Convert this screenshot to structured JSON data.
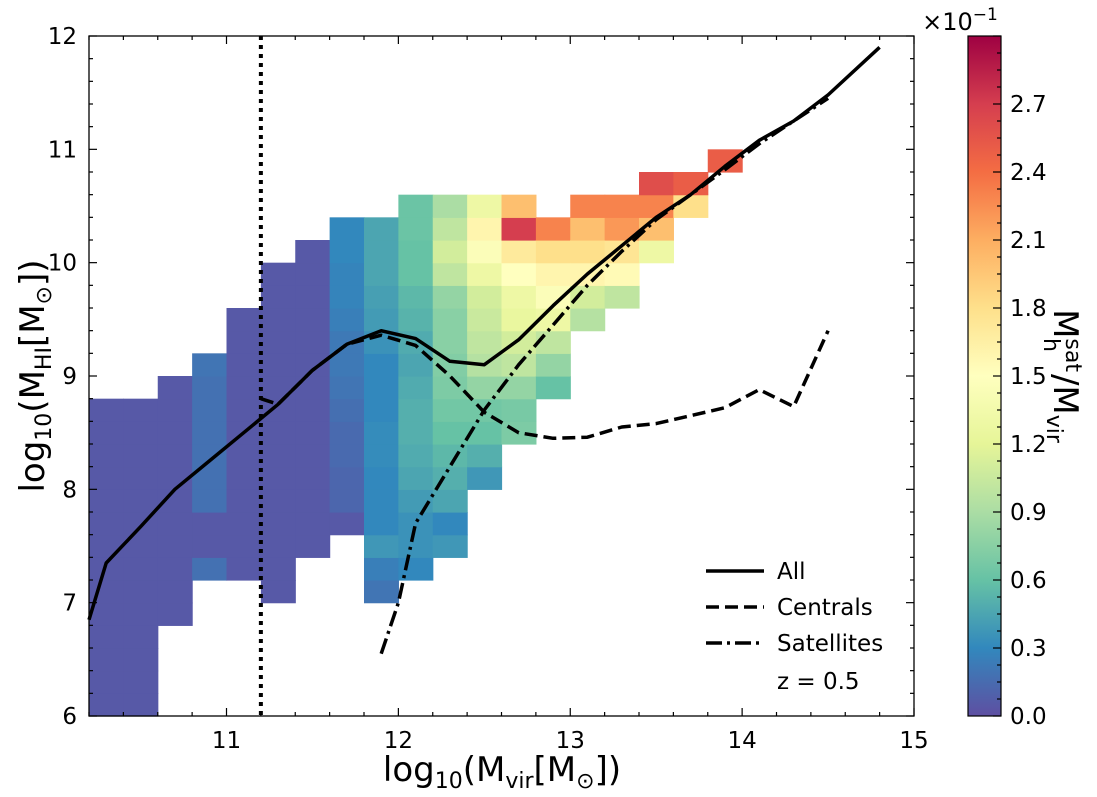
{
  "chart_data": {
    "type": "heatmap",
    "xlabel": "log10(Mvir[M⊙])",
    "ylabel": "log10(MHI[M⊙])",
    "xlim": [
      10.2,
      15.0
    ],
    "ylim": [
      6.0,
      12.0
    ],
    "xticks": [
      11,
      12,
      13,
      14,
      15
    ],
    "yticks": [
      6,
      7,
      8,
      9,
      10,
      11,
      12
    ],
    "grid": false,
    "colorbar": {
      "label": "Mh sat/Mvir",
      "multiplier": "×10−1",
      "range": [
        0.0,
        3.0
      ],
      "ticks": [
        "0.0",
        "0.3",
        "0.6",
        "0.9",
        "1.2",
        "1.5",
        "1.8",
        "2.1",
        "2.4",
        "2.7"
      ],
      "colormap": "Spectral_r",
      "colors": [
        "#5e4fa2",
        "#3288bd",
        "#66c2a5",
        "#abdda4",
        "#e6f598",
        "#ffffbf",
        "#fee08b",
        "#fdae61",
        "#f46d43",
        "#d53e4f",
        "#9e0142"
      ]
    },
    "heatmap": {
      "bin_width": 0.2,
      "bin_height": 0.2,
      "columns": [
        {
          "x": 10.3,
          "cells": [
            [
              6.1,
              0.05
            ],
            [
              6.3,
              0.05
            ],
            [
              6.5,
              0.05
            ],
            [
              6.7,
              0.05
            ],
            [
              6.9,
              0.05
            ],
            [
              7.1,
              0.05
            ],
            [
              7.3,
              0.05
            ],
            [
              7.5,
              0.05
            ],
            [
              7.7,
              0.05
            ],
            [
              7.9,
              0.05
            ],
            [
              8.1,
              0.05
            ],
            [
              8.3,
              0.05
            ],
            [
              8.5,
              0.05
            ],
            [
              8.7,
              0.05
            ]
          ]
        },
        {
          "x": 10.5,
          "cells": [
            [
              6.1,
              0.05
            ],
            [
              6.3,
              0.05
            ],
            [
              6.5,
              0.05
            ],
            [
              6.7,
              0.05
            ],
            [
              6.9,
              0.05
            ],
            [
              7.1,
              0.05
            ],
            [
              7.3,
              0.05
            ],
            [
              7.5,
              0.05
            ],
            [
              7.7,
              0.05
            ],
            [
              7.9,
              0.05
            ],
            [
              8.1,
              0.05
            ],
            [
              8.3,
              0.05
            ],
            [
              8.5,
              0.05
            ],
            [
              8.7,
              0.05
            ]
          ]
        },
        {
          "x": 10.7,
          "cells": [
            [
              6.9,
              0.05
            ],
            [
              7.1,
              0.05
            ],
            [
              7.3,
              0.05
            ],
            [
              7.5,
              0.05
            ],
            [
              7.7,
              0.05
            ],
            [
              7.9,
              0.05
            ],
            [
              8.1,
              0.05
            ],
            [
              8.3,
              0.05
            ],
            [
              8.5,
              0.05
            ],
            [
              8.7,
              0.05
            ],
            [
              8.9,
              0.05
            ]
          ]
        },
        {
          "x": 10.9,
          "cells": [
            [
              7.3,
              0.18
            ],
            [
              7.5,
              0.05
            ],
            [
              7.7,
              0.05
            ],
            [
              7.9,
              0.18
            ],
            [
              8.1,
              0.18
            ],
            [
              8.3,
              0.18
            ],
            [
              8.5,
              0.18
            ],
            [
              8.7,
              0.18
            ],
            [
              8.9,
              0.18
            ],
            [
              9.1,
              0.2
            ]
          ]
        },
        {
          "x": 11.1,
          "cells": [
            [
              7.3,
              0.05
            ],
            [
              7.5,
              0.05
            ],
            [
              7.7,
              0.05
            ],
            [
              7.9,
              0.05
            ],
            [
              8.1,
              0.05
            ],
            [
              8.3,
              0.05
            ],
            [
              8.5,
              0.05
            ],
            [
              8.7,
              0.05
            ],
            [
              8.9,
              0.05
            ],
            [
              9.1,
              0.05
            ],
            [
              9.3,
              0.05
            ],
            [
              9.5,
              0.05
            ]
          ]
        },
        {
          "x": 11.3,
          "cells": [
            [
              7.1,
              0.05
            ],
            [
              7.3,
              0.05
            ],
            [
              7.5,
              0.05
            ],
            [
              7.7,
              0.05
            ],
            [
              7.9,
              0.05
            ],
            [
              8.1,
              0.05
            ],
            [
              8.3,
              0.05
            ],
            [
              8.5,
              0.05
            ],
            [
              8.7,
              0.05
            ],
            [
              8.9,
              0.05
            ],
            [
              9.1,
              0.05
            ],
            [
              9.3,
              0.05
            ],
            [
              9.5,
              0.05
            ],
            [
              9.7,
              0.05
            ],
            [
              9.9,
              0.05
            ]
          ]
        },
        {
          "x": 11.5,
          "cells": [
            [
              7.5,
              0.05
            ],
            [
              7.7,
              0.05
            ],
            [
              7.9,
              0.05
            ],
            [
              8.1,
              0.05
            ],
            [
              8.3,
              0.05
            ],
            [
              8.5,
              0.05
            ],
            [
              8.7,
              0.05
            ],
            [
              8.9,
              0.05
            ],
            [
              9.1,
              0.05
            ],
            [
              9.3,
              0.05
            ],
            [
              9.5,
              0.05
            ],
            [
              9.7,
              0.05
            ],
            [
              9.9,
              0.05
            ],
            [
              10.1,
              0.05
            ]
          ]
        },
        {
          "x": 11.7,
          "cells": [
            [
              7.7,
              0.05
            ],
            [
              7.9,
              0.12
            ],
            [
              8.1,
              0.12
            ],
            [
              8.3,
              0.14
            ],
            [
              8.5,
              0.14
            ],
            [
              8.7,
              0.17
            ],
            [
              8.9,
              0.2
            ],
            [
              9.1,
              0.22
            ],
            [
              9.3,
              0.22
            ],
            [
              9.5,
              0.25
            ],
            [
              9.7,
              0.28
            ],
            [
              9.9,
              0.28
            ],
            [
              10.1,
              0.3
            ],
            [
              10.3,
              0.3
            ]
          ]
        },
        {
          "x": 11.9,
          "cells": [
            [
              7.1,
              0.2
            ],
            [
              7.3,
              0.25
            ],
            [
              7.5,
              0.38
            ],
            [
              7.7,
              0.3
            ],
            [
              7.9,
              0.3
            ],
            [
              8.1,
              0.3
            ],
            [
              8.3,
              0.32
            ],
            [
              8.5,
              0.32
            ],
            [
              8.7,
              0.3
            ],
            [
              8.9,
              0.3
            ],
            [
              9.1,
              0.3
            ],
            [
              9.3,
              0.35
            ],
            [
              9.5,
              0.4
            ],
            [
              9.7,
              0.42
            ],
            [
              9.9,
              0.45
            ],
            [
              10.1,
              0.45
            ],
            [
              10.3,
              0.45
            ]
          ]
        },
        {
          "x": 12.1,
          "cells": [
            [
              7.3,
              0.3
            ],
            [
              7.5,
              0.35
            ],
            [
              7.7,
              0.35
            ],
            [
              7.9,
              0.4
            ],
            [
              8.1,
              0.45
            ],
            [
              8.3,
              0.48
            ],
            [
              8.5,
              0.5
            ],
            [
              8.7,
              0.5
            ],
            [
              8.9,
              0.48
            ],
            [
              9.1,
              0.45
            ],
            [
              9.3,
              0.48
            ],
            [
              9.5,
              0.52
            ],
            [
              9.7,
              0.55
            ],
            [
              9.9,
              0.6
            ],
            [
              10.1,
              0.6
            ],
            [
              10.3,
              0.62
            ],
            [
              10.5,
              0.62
            ]
          ]
        },
        {
          "x": 12.3,
          "cells": [
            [
              7.5,
              0.38
            ],
            [
              7.7,
              0.3
            ],
            [
              7.9,
              0.45
            ],
            [
              8.1,
              0.5
            ],
            [
              8.3,
              0.55
            ],
            [
              8.5,
              0.6
            ],
            [
              8.7,
              0.65
            ],
            [
              8.9,
              0.7
            ],
            [
              9.1,
              0.72
            ],
            [
              9.3,
              0.75
            ],
            [
              9.5,
              0.75
            ],
            [
              9.7,
              0.8
            ],
            [
              9.9,
              1.0
            ],
            [
              10.1,
              1.1
            ],
            [
              10.3,
              1.0
            ],
            [
              10.5,
              0.9
            ]
          ]
        },
        {
          "x": 12.5,
          "cells": [
            [
              8.1,
              0.38
            ],
            [
              8.3,
              0.5
            ],
            [
              8.5,
              0.6
            ],
            [
              8.7,
              0.65
            ],
            [
              8.9,
              0.8
            ],
            [
              9.1,
              0.95
            ],
            [
              9.3,
              1.0
            ],
            [
              9.5,
              1.05
            ],
            [
              9.7,
              1.1
            ],
            [
              9.9,
              1.3
            ],
            [
              10.1,
              1.45
            ],
            [
              10.3,
              1.6
            ],
            [
              10.5,
              1.3
            ]
          ]
        },
        {
          "x": 12.7,
          "cells": [
            [
              8.5,
              0.7
            ],
            [
              8.7,
              0.68
            ],
            [
              8.9,
              0.8
            ],
            [
              9.1,
              1.0
            ],
            [
              9.3,
              1.1
            ],
            [
              9.5,
              1.25
            ],
            [
              9.7,
              1.3
            ],
            [
              9.9,
              1.5
            ],
            [
              10.1,
              1.7
            ],
            [
              10.3,
              2.7
            ],
            [
              10.5,
              2.0
            ]
          ]
        },
        {
          "x": 12.9,
          "cells": [
            [
              8.9,
              0.6
            ],
            [
              9.1,
              0.8
            ],
            [
              9.3,
              1.0
            ],
            [
              9.5,
              1.3
            ],
            [
              9.7,
              1.45
            ],
            [
              9.9,
              1.6
            ],
            [
              10.1,
              1.8
            ],
            [
              10.3,
              2.3
            ]
          ]
        },
        {
          "x": 13.1,
          "cells": [
            [
              9.5,
              0.95
            ],
            [
              9.7,
              1.1
            ],
            [
              9.9,
              1.6
            ],
            [
              10.1,
              1.8
            ],
            [
              10.3,
              2.0
            ],
            [
              10.5,
              2.3
            ]
          ]
        },
        {
          "x": 13.3,
          "cells": [
            [
              9.7,
              1.0
            ],
            [
              9.9,
              1.55
            ],
            [
              10.1,
              1.75
            ],
            [
              10.3,
              2.2
            ],
            [
              10.5,
              2.3
            ]
          ]
        },
        {
          "x": 13.5,
          "cells": [
            [
              10.1,
              1.3
            ],
            [
              10.3,
              2.0
            ],
            [
              10.5,
              2.3
            ],
            [
              10.7,
              2.6
            ]
          ]
        },
        {
          "x": 13.7,
          "cells": [
            [
              10.5,
              1.8
            ],
            [
              10.7,
              2.5
            ]
          ]
        },
        {
          "x": 13.9,
          "cells": [
            [
              10.9,
              2.5
            ]
          ]
        }
      ]
    },
    "series": [
      {
        "name": "All",
        "style": "solid",
        "x": [
          10.2,
          10.3,
          10.5,
          10.7,
          10.9,
          11.1,
          11.3,
          11.5,
          11.7,
          11.9,
          12.1,
          12.3,
          12.5,
          12.7,
          12.9,
          13.1,
          13.3,
          13.5,
          13.7,
          13.9,
          14.1,
          14.3,
          14.5,
          14.8
        ],
        "y": [
          6.85,
          7.35,
          7.67,
          8.0,
          8.25,
          8.5,
          8.75,
          9.05,
          9.28,
          9.4,
          9.33,
          9.13,
          9.1,
          9.32,
          9.62,
          9.9,
          10.15,
          10.4,
          10.6,
          10.85,
          11.08,
          11.25,
          11.48,
          11.9
        ]
      },
      {
        "name": "Centrals",
        "style": "dashed",
        "x": [
          11.2,
          11.3,
          11.5,
          11.7,
          11.9,
          12.1,
          12.3,
          12.5,
          12.7,
          12.9,
          13.1,
          13.3,
          13.5,
          13.7,
          13.9,
          14.1,
          14.3,
          14.5
        ],
        "y": [
          8.8,
          8.75,
          9.05,
          9.28,
          9.36,
          9.27,
          9.0,
          8.68,
          8.5,
          8.45,
          8.46,
          8.55,
          8.58,
          8.65,
          8.72,
          8.88,
          8.73,
          9.4
        ]
      },
      {
        "name": "Satellites",
        "style": "dashdot",
        "x": [
          11.9,
          12.0,
          12.1,
          12.3,
          12.5,
          12.7,
          12.9,
          13.1,
          13.3,
          13.5,
          13.7,
          13.9,
          14.1,
          14.3,
          14.5
        ],
        "y": [
          6.55,
          7.0,
          7.7,
          8.2,
          8.7,
          9.1,
          9.45,
          9.8,
          10.1,
          10.38,
          10.6,
          10.82,
          11.05,
          11.25,
          11.45
        ]
      }
    ],
    "vertical_line": {
      "x": 11.2,
      "style": "dotted"
    },
    "legend": {
      "position": "bottom-right",
      "entries": [
        "All",
        "Centrals",
        "Satellites"
      ],
      "annotation": "z = 0.5"
    }
  }
}
